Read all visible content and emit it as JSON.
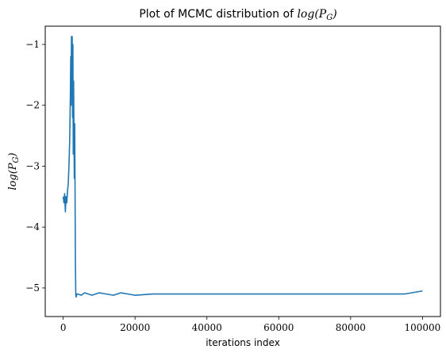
{
  "chart_data": {
    "type": "line",
    "title_text": "Plot of MCMC distribution of ",
    "title_math": "log(P",
    "title_math_sub": "G",
    "title_math_close": ")",
    "xlabel": "iterations index",
    "ylabel_math": "log(P",
    "ylabel_math_sub": "G",
    "ylabel_math_close": ")",
    "xlim": [
      -5000,
      105000
    ],
    "ylim": [
      -5.47,
      -0.7
    ],
    "xticks": [
      0,
      20000,
      40000,
      60000,
      80000,
      100000
    ],
    "xtick_labels": [
      "0",
      "20000",
      "40000",
      "60000",
      "80000",
      "100000"
    ],
    "yticks": [
      -1,
      -2,
      -3,
      -4,
      -5
    ],
    "ytick_labels": [
      "−1",
      "−2",
      "−3",
      "−4",
      "−5"
    ],
    "grid": false,
    "line_color": "#1f77b4",
    "series": [
      {
        "x": [
          0,
          200,
          400,
          600,
          800,
          1000,
          1200,
          1400,
          1600,
          1800,
          2000,
          2100,
          2200,
          2300,
          2400,
          2500,
          2600,
          2700,
          2800,
          2900,
          3000,
          3100,
          3200,
          3300,
          3400,
          3500,
          3600,
          3800,
          4000,
          5000,
          6000,
          7000,
          8000,
          10000,
          12000,
          14000,
          16000,
          18000,
          20000,
          25000,
          30000,
          35000,
          40000,
          45000,
          50000,
          55000,
          60000,
          65000,
          70000,
          75000,
          80000,
          85000,
          90000,
          95000,
          100000
        ],
        "y": [
          -3.5,
          -3.6,
          -3.45,
          -3.75,
          -3.5,
          -3.6,
          -3.4,
          -3.3,
          -3.0,
          -2.6,
          -1.8,
          -1.2,
          -2.0,
          -0.87,
          -1.5,
          -0.87,
          -2.2,
          -1.0,
          -2.8,
          -1.6,
          -2.5,
          -3.2,
          -2.3,
          -3.4,
          -4.6,
          -5.1,
          -5.15,
          -5.1,
          -5.1,
          -5.12,
          -5.08,
          -5.1,
          -5.12,
          -5.08,
          -5.1,
          -5.12,
          -5.08,
          -5.1,
          -5.12,
          -5.1,
          -5.1,
          -5.1,
          -5.1,
          -5.1,
          -5.1,
          -5.1,
          -5.1,
          -5.1,
          -5.1,
          -5.1,
          -5.1,
          -5.1,
          -5.1,
          -5.1,
          -5.05
        ]
      }
    ]
  }
}
